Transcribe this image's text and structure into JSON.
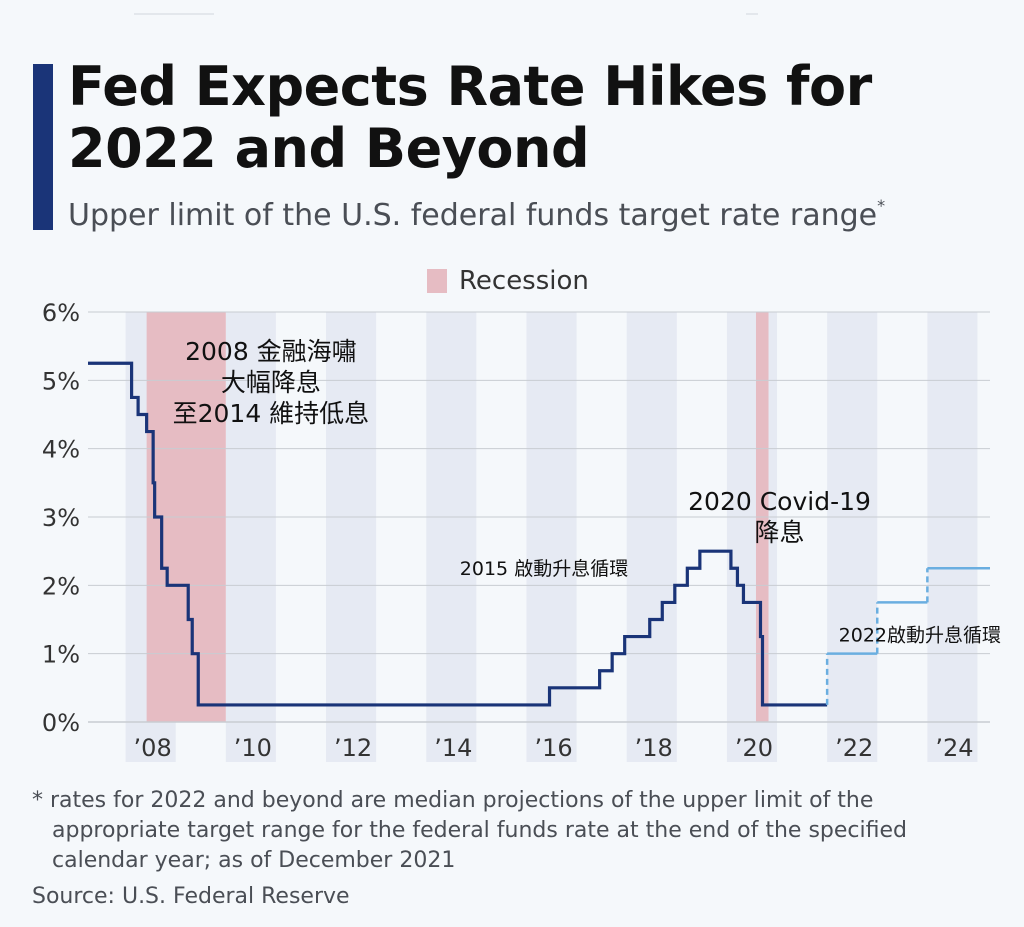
{
  "title": "Fed Expects Rate Hikes for 2022 and Beyond",
  "subtitle": "Upper limit of the U.S. federal funds target rate range",
  "subtitle_mark": "*",
  "colors": {
    "accent": "#1a3478",
    "line": "#1a3478",
    "projection": "#6aaee0",
    "recession": "#e6bcc3",
    "band": "#e6eaf3",
    "grid": "#c8ccd2"
  },
  "footnote": {
    "line1": "* rates for 2022 and beyond are median projections of the upper limit of the",
    "line2": "appropriate target range for the federal funds rate at the end of the specified",
    "line3": "calendar year; as of December 2021"
  },
  "source": "Source: U.S. Federal Reserve",
  "chart_data": {
    "type": "line",
    "title": "Fed Expects Rate Hikes for 2022 and Beyond",
    "ylabel": "",
    "xlabel": "",
    "ylim": [
      0,
      6
    ],
    "xlim": [
      2006.75,
      2024.75
    ],
    "y_ticks": [
      {
        "value": 0,
        "label": "0%"
      },
      {
        "value": 1,
        "label": "1%"
      },
      {
        "value": 2,
        "label": "2%"
      },
      {
        "value": 3,
        "label": "3%"
      },
      {
        "value": 4,
        "label": "4%"
      },
      {
        "value": 5,
        "label": "5%"
      },
      {
        "value": 6,
        "label": "6%"
      }
    ],
    "x_ticks": [
      {
        "value": 2008,
        "label": "’08"
      },
      {
        "value": 2010,
        "label": "’10"
      },
      {
        "value": 2012,
        "label": "’12"
      },
      {
        "value": 2014,
        "label": "’14"
      },
      {
        "value": 2016,
        "label": "’16"
      },
      {
        "value": 2018,
        "label": "’18"
      },
      {
        "value": 2020,
        "label": "’20"
      },
      {
        "value": 2022,
        "label": "’22"
      },
      {
        "value": 2024,
        "label": "’24"
      }
    ],
    "legend": [
      {
        "label": "Recession"
      }
    ],
    "legend_position": "top-center",
    "recessions": [
      {
        "start": 2007.92,
        "end": 2009.5
      },
      {
        "start": 2020.08,
        "end": 2020.33
      }
    ],
    "series": [
      {
        "style": "step",
        "points": [
          [
            2006.75,
            5.25
          ],
          [
            2007.62,
            4.75
          ],
          [
            2007.75,
            4.5
          ],
          [
            2007.92,
            4.25
          ],
          [
            2008.05,
            3.5
          ],
          [
            2008.08,
            3.0
          ],
          [
            2008.22,
            2.25
          ],
          [
            2008.33,
            2.0
          ],
          [
            2008.75,
            1.5
          ],
          [
            2008.83,
            1.0
          ],
          [
            2008.95,
            0.25
          ],
          [
            2015.96,
            0.5
          ],
          [
            2016.96,
            0.75
          ],
          [
            2017.21,
            1.0
          ],
          [
            2017.46,
            1.25
          ],
          [
            2017.96,
            1.5
          ],
          [
            2018.21,
            1.75
          ],
          [
            2018.46,
            2.0
          ],
          [
            2018.71,
            2.25
          ],
          [
            2018.96,
            2.5
          ],
          [
            2019.58,
            2.25
          ],
          [
            2019.71,
            2.0
          ],
          [
            2019.83,
            1.75
          ],
          [
            2020.17,
            1.25
          ],
          [
            2020.21,
            0.25
          ],
          [
            2021.5,
            0.25
          ]
        ]
      },
      {
        "style": "step-projection",
        "points": [
          [
            2021.5,
            0.25
          ],
          [
            2021.5,
            1.0
          ],
          [
            2022.5,
            1.75
          ],
          [
            2023.5,
            2.25
          ],
          [
            2024.75,
            2.25
          ]
        ]
      }
    ],
    "annotations": [
      {
        "text_lines": [
          "2008 金融海嘯",
          "大幅降息",
          "至2014 維持低息"
        ],
        "x": 2010.4,
        "y": 5.3
      },
      {
        "text_lines": [
          "2020 Covid-19",
          "降息"
        ],
        "x": 2020.55,
        "y": 3.1
      },
      {
        "text_lines": [
          "2015 啟動升息循環"
        ],
        "x": 2015.85,
        "y": 2.15
      },
      {
        "text_lines": [
          "2022啟動升息循環"
        ],
        "x": 2023.35,
        "y": 1.18
      }
    ]
  }
}
